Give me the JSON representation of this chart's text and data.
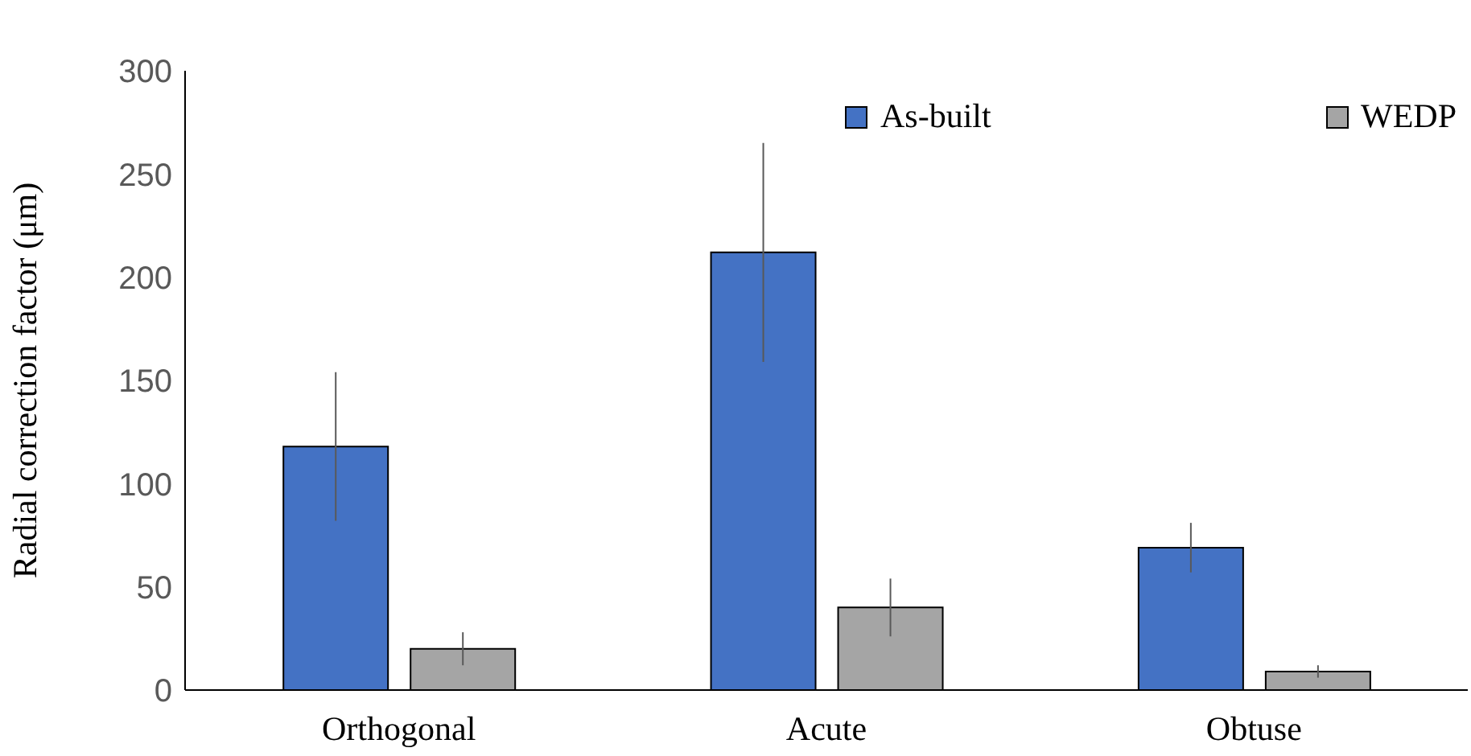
{
  "chart_data": {
    "type": "bar",
    "ylabel": "Radial correction factor (μm)",
    "categories": [
      "Orthogonal",
      "Acute",
      "Obtuse"
    ],
    "series": [
      {
        "name": "As-built",
        "color": "#4472c4",
        "values": [
          118,
          212,
          69
        ],
        "errors": [
          36,
          53,
          12
        ]
      },
      {
        "name": "WEDP",
        "color": "#a5a5a5",
        "values": [
          20,
          40,
          9
        ],
        "errors": [
          8,
          14,
          3
        ]
      }
    ],
    "ylim": [
      0,
      300
    ],
    "yticks": [
      0,
      50,
      100,
      150,
      200,
      250,
      300
    ],
    "grid": false,
    "legend": "top right"
  }
}
